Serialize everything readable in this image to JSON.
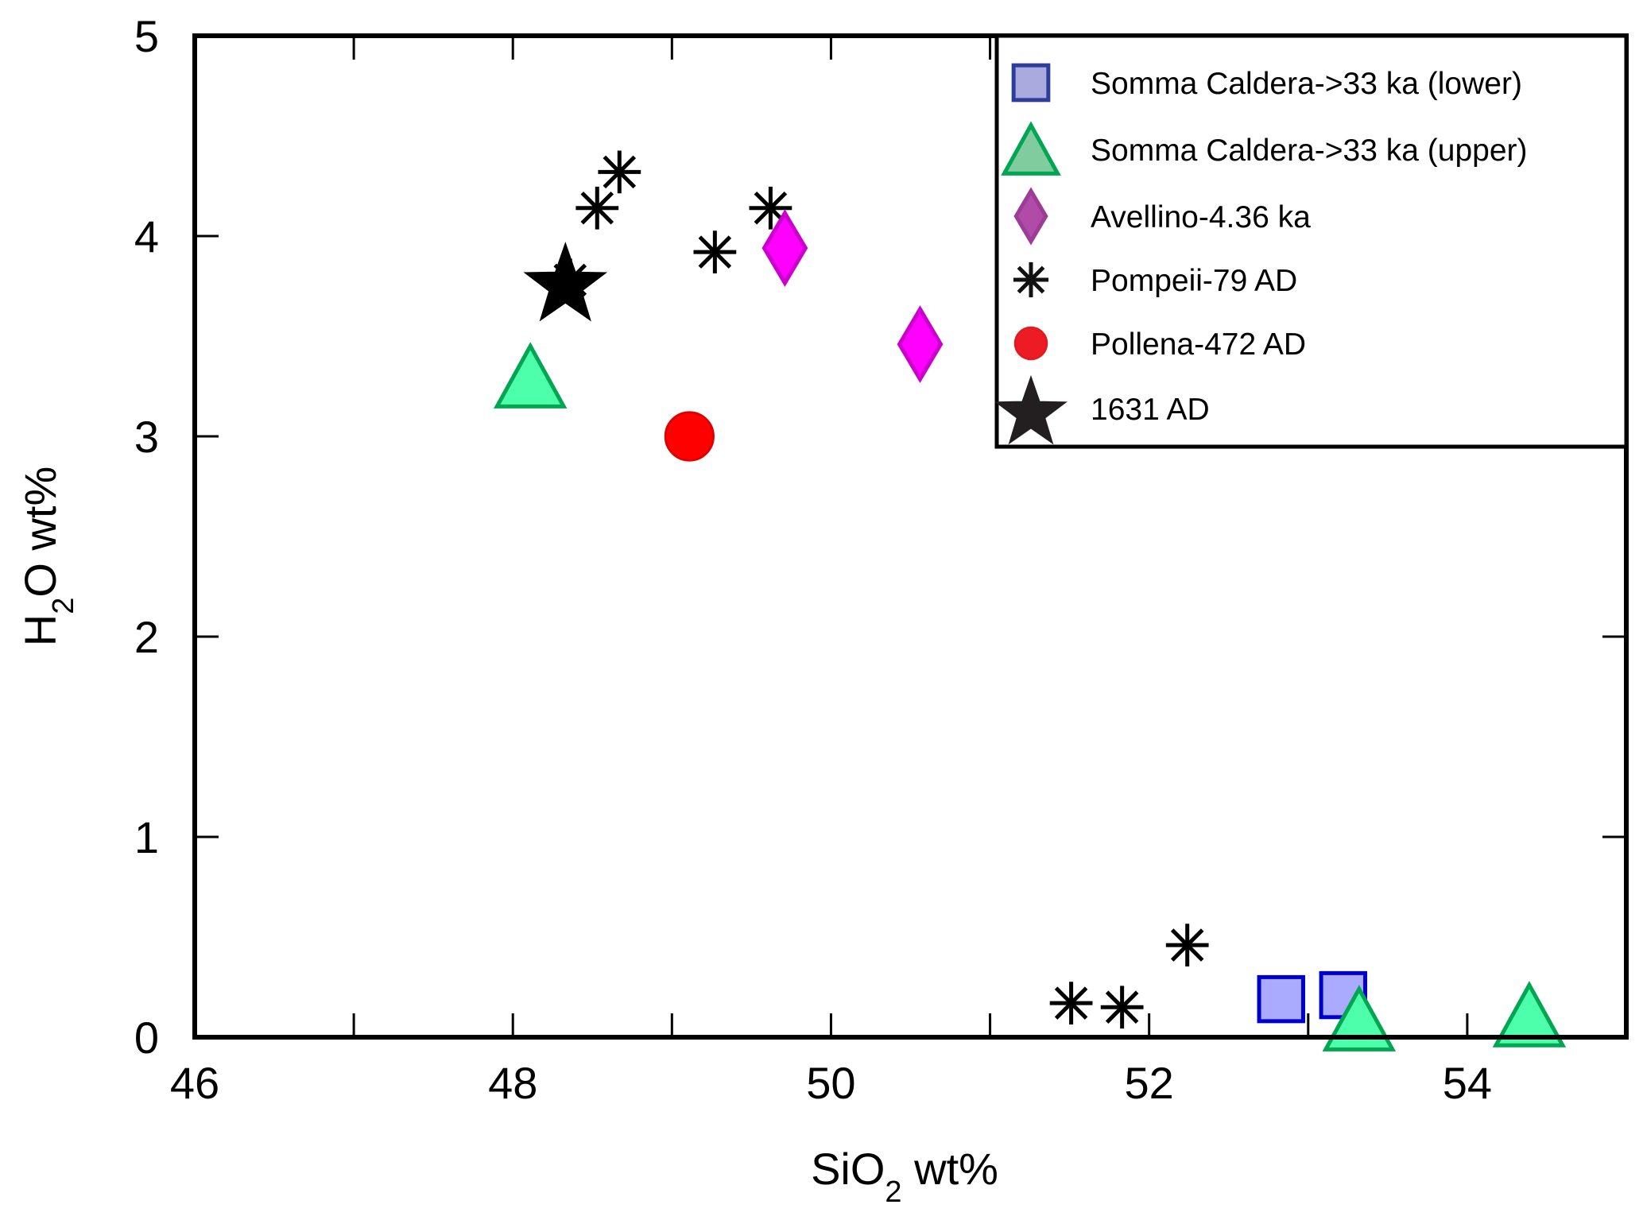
{
  "chart_data": {
    "type": "scatter",
    "title": "",
    "xlabel": {
      "main": "SiO",
      "sub": "2",
      "suffix": " wt%"
    },
    "ylabel": {
      "main": "H",
      "sub": "2",
      "suffix": "O wt%"
    },
    "xlim": [
      46,
      55
    ],
    "ylim": [
      0,
      5
    ],
    "xticks": [
      46,
      47,
      48,
      49,
      50,
      51,
      52,
      53,
      54,
      55
    ],
    "xtick_labels": [
      "46",
      "48",
      "50",
      "52",
      "54"
    ],
    "xtick_label_values": [
      46,
      48,
      50,
      52,
      54
    ],
    "yticks": [
      0,
      1,
      2,
      3,
      4,
      5
    ],
    "ytick_labels": [
      "0",
      "1",
      "2",
      "3",
      "4",
      "5"
    ],
    "grid": false,
    "legend_position": "top-right",
    "series": [
      {
        "name": "Somma Caldera->33 ka (lower)",
        "marker": "square",
        "fill": "#aaaaff",
        "stroke": "#0000cc",
        "legend_fill": "#aaaade",
        "legend_stroke": "#2e3d99",
        "points": [
          [
            52.83,
            0.19
          ],
          [
            53.22,
            0.21
          ]
        ]
      },
      {
        "name": "Somma Caldera->33 ka (upper)",
        "marker": "triangle",
        "fill": "#4dffaa",
        "stroke": "#00a651",
        "legend_fill": "#80cc9e",
        "legend_stroke": "#00a651",
        "points": [
          [
            48.11,
            3.3
          ],
          [
            53.32,
            0.09
          ],
          [
            54.39,
            0.11
          ]
        ]
      },
      {
        "name": "Avellino-4.36 ka",
        "marker": "diamond",
        "fill": "#ff00ff",
        "stroke": "#cc00cc",
        "legend_fill": "#b04ca8",
        "legend_stroke": "#9b3d96",
        "points": [
          [
            49.71,
            3.94
          ],
          [
            50.56,
            3.46
          ]
        ]
      },
      {
        "name": "Pompeii-79 AD",
        "marker": "asterisk",
        "fill": "none",
        "stroke": "#000000",
        "legend_fill": "none",
        "legend_stroke": "#111111",
        "points": [
          [
            48.36,
            3.78
          ],
          [
            48.53,
            4.14
          ],
          [
            48.67,
            4.32
          ],
          [
            49.27,
            3.92
          ],
          [
            49.62,
            4.14
          ],
          [
            51.51,
            0.17
          ],
          [
            51.83,
            0.15
          ],
          [
            52.24,
            0.46
          ]
        ]
      },
      {
        "name": "Pollena-472 AD",
        "marker": "circle",
        "fill": "#ff0000",
        "stroke": "#dd0000",
        "legend_fill": "#ed1c24",
        "legend_stroke": "#e01b22",
        "points": [
          [
            49.11,
            3.0
          ]
        ]
      },
      {
        "name": "1631 AD",
        "marker": "star",
        "fill": "#000000",
        "stroke": "#000000",
        "legend_fill": "#231f20",
        "legend_stroke": "#231f20",
        "points": [
          [
            48.33,
            3.78
          ]
        ]
      }
    ]
  }
}
